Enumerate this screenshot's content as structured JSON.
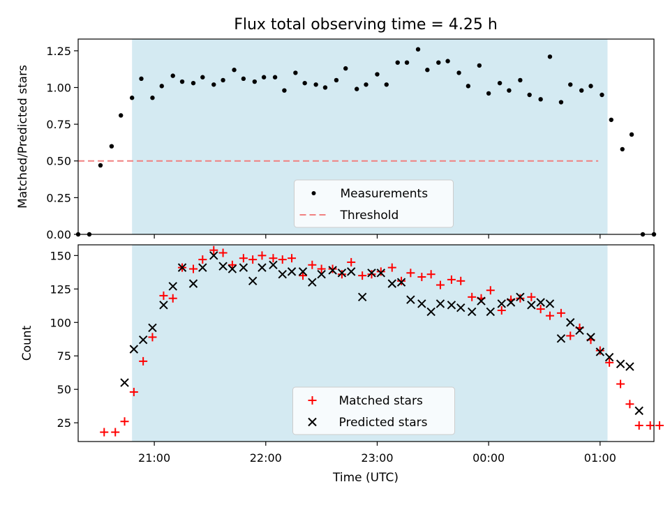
{
  "chart_data": [
    {
      "type": "scatter",
      "title": "Flux total observing time = 4.25 h",
      "xlabel": "",
      "ylabel": "Matched/Predicted stars",
      "ylim": [
        0,
        1.33
      ],
      "yticks": [
        "0.00",
        "0.25",
        "0.50",
        "0.75",
        "1.00",
        "1.25"
      ],
      "shaded_region_minutes": [
        49,
        305
      ],
      "threshold": {
        "name": "Threshold",
        "value": 0.5,
        "x_range_minutes": [
          20,
          300
        ],
        "color": "#f08080"
      },
      "series": [
        {
          "name": "Measurements",
          "marker": "dot",
          "color": "#000000",
          "points": [
            [
              20,
              0.0
            ],
            [
              26,
              0.0
            ],
            [
              32,
              0.47
            ],
            [
              38,
              0.6
            ],
            [
              43,
              0.81
            ],
            [
              49,
              0.93
            ],
            [
              54,
              1.06
            ],
            [
              60,
              0.93
            ],
            [
              65,
              1.01
            ],
            [
              71,
              1.08
            ],
            [
              76,
              1.04
            ],
            [
              82,
              1.03
            ],
            [
              87,
              1.07
            ],
            [
              93,
              1.02
            ],
            [
              98,
              1.05
            ],
            [
              104,
              1.12
            ],
            [
              109,
              1.06
            ],
            [
              115,
              1.04
            ],
            [
              120,
              1.07
            ],
            [
              126,
              1.07
            ],
            [
              131,
              0.98
            ],
            [
              137,
              1.1
            ],
            [
              142,
              1.03
            ],
            [
              148,
              1.02
            ],
            [
              153,
              1.0
            ],
            [
              159,
              1.05
            ],
            [
              164,
              1.13
            ],
            [
              170,
              0.99
            ],
            [
              175,
              1.02
            ],
            [
              181,
              1.09
            ],
            [
              186,
              1.02
            ],
            [
              192,
              1.17
            ],
            [
              197,
              1.17
            ],
            [
              203,
              1.26
            ],
            [
              208,
              1.12
            ],
            [
              214,
              1.17
            ],
            [
              219,
              1.18
            ],
            [
              225,
              1.1
            ],
            [
              230,
              1.01
            ],
            [
              236,
              1.15
            ],
            [
              241,
              0.96
            ],
            [
              247,
              1.03
            ],
            [
              252,
              0.98
            ],
            [
              258,
              1.05
            ],
            [
              263,
              0.95
            ],
            [
              269,
              0.92
            ],
            [
              274,
              1.21
            ],
            [
              280,
              0.9
            ],
            [
              285,
              1.02
            ],
            [
              291,
              0.98
            ],
            [
              296,
              1.01
            ],
            [
              302,
              0.95
            ],
            [
              307,
              0.78
            ],
            [
              313,
              0.58
            ],
            [
              318,
              0.68
            ],
            [
              324,
              0.0
            ],
            [
              330,
              0.0
            ]
          ]
        }
      ],
      "legend": {
        "position": "lower center",
        "entries": [
          "Measurements",
          "Threshold"
        ]
      }
    },
    {
      "type": "scatter",
      "title": "",
      "xlabel": "Time (UTC)",
      "ylabel": "Count",
      "ylim": [
        11,
        158
      ],
      "yticks": [
        "25",
        "50",
        "75",
        "100",
        "125",
        "150"
      ],
      "x_unit": "minutes since 20:19 UTC",
      "xticks": [
        {
          "value": 41,
          "label": "21:00"
        },
        {
          "value": 101,
          "label": "22:00"
        },
        {
          "value": 161,
          "label": "23:00"
        },
        {
          "value": 221,
          "label": "00:00"
        },
        {
          "value": 281,
          "label": "01:00"
        }
      ],
      "xlim": [
        0,
        310
      ],
      "shaded_region_minutes": [
        29,
        285
      ],
      "series": [
        {
          "name": "Matched stars",
          "marker": "plus",
          "color": "#ff0000",
          "points": [
            [
              14,
              18
            ],
            [
              20,
              18
            ],
            [
              25,
              26
            ],
            [
              30,
              48
            ],
            [
              35,
              71
            ],
            [
              40,
              89
            ],
            [
              46,
              120
            ],
            [
              51,
              118
            ],
            [
              56,
              141
            ],
            [
              62,
              140
            ],
            [
              67,
              147
            ],
            [
              73,
              154
            ],
            [
              78,
              152
            ],
            [
              83,
              143
            ],
            [
              89,
              148
            ],
            [
              94,
              147
            ],
            [
              99,
              150
            ],
            [
              105,
              148
            ],
            [
              110,
              147
            ],
            [
              115,
              148
            ],
            [
              121,
              135
            ],
            [
              126,
              143
            ],
            [
              131,
              140
            ],
            [
              137,
              140
            ],
            [
              142,
              136
            ],
            [
              147,
              145
            ],
            [
              153,
              135
            ],
            [
              158,
              136
            ],
            [
              163,
              138
            ],
            [
              169,
              141
            ],
            [
              174,
              131
            ],
            [
              179,
              137
            ],
            [
              185,
              134
            ],
            [
              190,
              136
            ],
            [
              195,
              128
            ],
            [
              201,
              132
            ],
            [
              206,
              131
            ],
            [
              212,
              119
            ],
            [
              217,
              118
            ],
            [
              222,
              124
            ],
            [
              228,
              109
            ],
            [
              233,
              117
            ],
            [
              238,
              118
            ],
            [
              244,
              119
            ],
            [
              249,
              110
            ],
            [
              254,
              105
            ],
            [
              260,
              107
            ],
            [
              265,
              90
            ],
            [
              270,
              96
            ],
            [
              276,
              87
            ],
            [
              281,
              79
            ],
            [
              286,
              70
            ],
            [
              292,
              54
            ],
            [
              297,
              39
            ],
            [
              302,
              23
            ],
            [
              308,
              23
            ],
            [
              313,
              23
            ]
          ]
        },
        {
          "name": "Predicted stars",
          "marker": "x",
          "color": "#000000",
          "points": [
            [
              25,
              55
            ],
            [
              30,
              80
            ],
            [
              35,
              87
            ],
            [
              40,
              96
            ],
            [
              46,
              113
            ],
            [
              51,
              127
            ],
            [
              56,
              141
            ],
            [
              62,
              129
            ],
            [
              67,
              141
            ],
            [
              73,
              150
            ],
            [
              78,
              142
            ],
            [
              83,
              140
            ],
            [
              89,
              141
            ],
            [
              94,
              131
            ],
            [
              99,
              141
            ],
            [
              105,
              143
            ],
            [
              110,
              136
            ],
            [
              115,
              138
            ],
            [
              121,
              138
            ],
            [
              126,
              130
            ],
            [
              131,
              136
            ],
            [
              137,
              139
            ],
            [
              142,
              137
            ],
            [
              147,
              138
            ],
            [
              153,
              119
            ],
            [
              158,
              137
            ],
            [
              163,
              137
            ],
            [
              169,
              129
            ],
            [
              174,
              130
            ],
            [
              179,
              117
            ],
            [
              185,
              114
            ],
            [
              190,
              108
            ],
            [
              195,
              114
            ],
            [
              201,
              113
            ],
            [
              206,
              111
            ],
            [
              212,
              108
            ],
            [
              217,
              116
            ],
            [
              222,
              108
            ],
            [
              228,
              114
            ],
            [
              233,
              115
            ],
            [
              238,
              119
            ],
            [
              244,
              113
            ],
            [
              249,
              115
            ],
            [
              254,
              114
            ],
            [
              260,
              88
            ],
            [
              265,
              100
            ],
            [
              270,
              94
            ],
            [
              276,
              89
            ],
            [
              281,
              78
            ],
            [
              286,
              74
            ],
            [
              292,
              69
            ],
            [
              297,
              67
            ],
            [
              302,
              34
            ]
          ]
        }
      ],
      "legend": {
        "position": "lower center",
        "entries": [
          "Matched stars",
          "Predicted stars"
        ]
      }
    }
  ]
}
